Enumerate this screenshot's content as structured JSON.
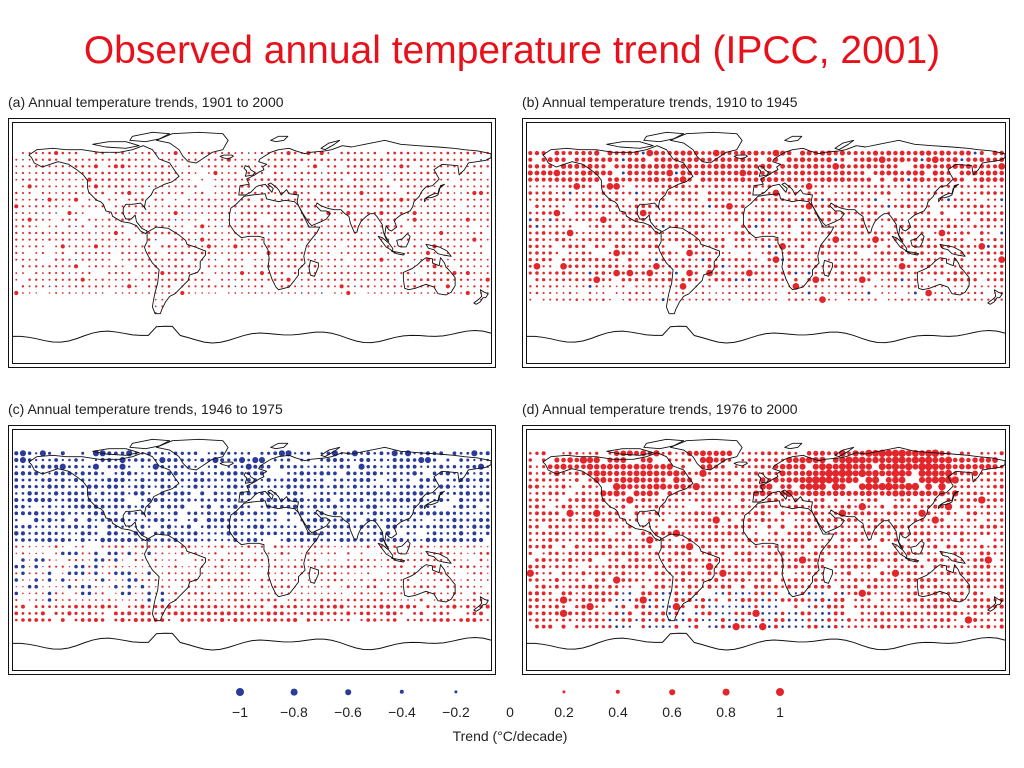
{
  "title": "Observed annual temperature trend (IPCC, 2001)",
  "panels": [
    {
      "label": "(a) Annual temperature trends, 1901 to 2000",
      "pattern": "a"
    },
    {
      "label": "(b) Annual temperature trends, 1910 to 1945",
      "pattern": "b"
    },
    {
      "label": "(c) Annual temperature trends, 1946 to 1975",
      "pattern": "c"
    },
    {
      "label": "(d) Annual temperature trends, 1976 to 2000",
      "pattern": "d"
    }
  ],
  "legend": {
    "items": [
      {
        "value": -1,
        "label": "−1"
      },
      {
        "value": -0.8,
        "label": "−0.8"
      },
      {
        "value": -0.6,
        "label": "−0.6"
      },
      {
        "value": -0.4,
        "label": "−0.4"
      },
      {
        "value": -0.2,
        "label": "−0.2"
      },
      {
        "value": 0,
        "label": "0"
      },
      {
        "value": 0.2,
        "label": "0.2"
      },
      {
        "value": 0.4,
        "label": "0.4"
      },
      {
        "value": 0.6,
        "label": "0.6"
      },
      {
        "value": 0.8,
        "label": "0.8"
      },
      {
        "value": 1,
        "label": "1"
      }
    ],
    "caption": "Trend (°C/decade)"
  },
  "colors": {
    "title": "#e8101a",
    "warming": "#e3262b",
    "cooling": "#2a3b9c",
    "land_outline": "#111111"
  }
}
